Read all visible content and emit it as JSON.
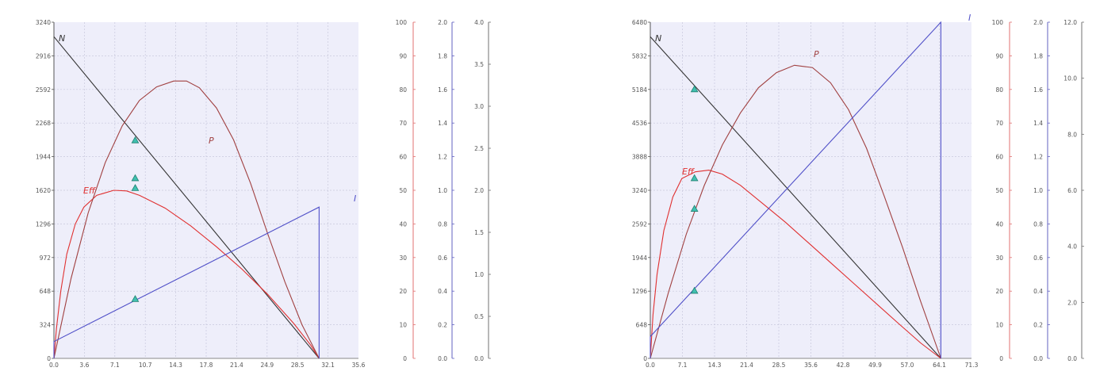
{
  "chart_data": [
    {
      "type": "line",
      "x_ticks": [
        "0.0",
        "3.6",
        "7.1",
        "10.7",
        "14.3",
        "17.8",
        "21.4",
        "24.9",
        "28.5",
        "32.1",
        "35.6"
      ],
      "xlim": [
        0,
        35.6
      ],
      "axes": [
        {
          "id": "speed",
          "ticks": [
            "0",
            "324",
            "648",
            "972",
            "1296",
            "1620",
            "1944",
            "2268",
            "2592",
            "2916",
            "3240"
          ],
          "range": [
            0,
            3240
          ],
          "color": "#555555",
          "title": ""
        },
        {
          "id": "eff",
          "ticks": [
            "0",
            "10",
            "20",
            "30",
            "40",
            "50",
            "60",
            "70",
            "80",
            "90",
            "100"
          ],
          "range": [
            0,
            100
          ],
          "color": "#e07070",
          "title": ""
        },
        {
          "id": "torque",
          "ticks": [
            "0.0",
            "0.2",
            "0.4",
            "0.6",
            "0.8",
            "1.0",
            "1.2",
            "1.4",
            "1.6",
            "1.8",
            "2.0"
          ],
          "range": [
            0,
            2
          ],
          "color": "#6060c0",
          "title": ""
        },
        {
          "id": "power",
          "ticks": [
            "0.0",
            "0.5",
            "1.0",
            "1.5",
            "2.0",
            "2.5",
            "3.0",
            "3.5",
            "4.0"
          ],
          "range": [
            0,
            4
          ],
          "color": "#707070",
          "title": ""
        }
      ],
      "series": [
        {
          "name": "N",
          "axis": "speed",
          "color": "#333333",
          "points": [
            [
              0,
              3100
            ],
            [
              31,
              0
            ]
          ]
        },
        {
          "name": "Eff",
          "axis": "eff",
          "color": "#e03030",
          "points": [
            [
              0,
              0
            ],
            [
              0.3,
              9
            ],
            [
              0.8,
              20
            ],
            [
              1.5,
              31
            ],
            [
              2.5,
              40
            ],
            [
              3.5,
              45
            ],
            [
              5,
              48.5
            ],
            [
              7,
              50
            ],
            [
              8.5,
              49.8
            ],
            [
              10,
              48.5
            ],
            [
              13,
              44.7
            ],
            [
              16,
              39.4
            ],
            [
              19,
              33.2
            ],
            [
              22,
              26.5
            ],
            [
              25,
              19
            ],
            [
              28,
              10.5
            ],
            [
              30,
              4
            ],
            [
              31,
              0
            ]
          ]
        },
        {
          "name": "P",
          "axis": "power",
          "color": "#a04040",
          "points": [
            [
              0,
              0
            ],
            [
              2,
              0.95
            ],
            [
              4,
              1.73
            ],
            [
              6,
              2.33
            ],
            [
              8,
              2.77
            ],
            [
              10,
              3.07
            ],
            [
              12,
              3.23
            ],
            [
              14,
              3.3
            ],
            [
              15.5,
              3.3
            ],
            [
              17,
              3.22
            ],
            [
              19,
              2.98
            ],
            [
              21,
              2.6
            ],
            [
              23,
              2.08
            ],
            [
              25,
              1.48
            ],
            [
              27,
              0.91
            ],
            [
              29,
              0.4
            ],
            [
              31,
              0
            ]
          ]
        },
        {
          "name": "I",
          "axis": "torque",
          "color": "#5050c8",
          "points": [
            [
              0,
              0
            ],
            [
              0,
              0.1
            ],
            [
              31,
              0.9
            ],
            [
              31,
              0
            ]
          ]
        }
      ],
      "markers": [
        {
          "x": 9.5,
          "axis": "speed",
          "value": 2100
        },
        {
          "x": 9.5,
          "axis": "speed",
          "value": 1735
        },
        {
          "x": 9.5,
          "axis": "speed",
          "value": 1640
        },
        {
          "x": 9.5,
          "axis": "speed",
          "value": 570
        }
      ],
      "labels": [
        {
          "text": "N",
          "series": "N",
          "color": "#333333"
        },
        {
          "text": "Eff",
          "series": "Eff",
          "color": "#e03030"
        },
        {
          "text": "P",
          "series": "P",
          "color": "#a04040"
        },
        {
          "text": "I",
          "series": "I",
          "color": "#5050c8"
        }
      ],
      "grid": true
    },
    {
      "type": "line",
      "x_ticks": [
        "0.0",
        "7.1",
        "14.3",
        "21.4",
        "28.5",
        "35.6",
        "42.8",
        "49.9",
        "57.0",
        "64.1",
        "71.3"
      ],
      "xlim": [
        0,
        71.3
      ],
      "axes": [
        {
          "id": "speed",
          "ticks": [
            "0",
            "648",
            "1296",
            "1944",
            "2592",
            "3240",
            "3888",
            "4536",
            "5184",
            "5832",
            "6480"
          ],
          "range": [
            0,
            6480
          ],
          "color": "#555555",
          "title": ""
        },
        {
          "id": "eff",
          "ticks": [
            "0",
            "10",
            "20",
            "30",
            "40",
            "50",
            "60",
            "70",
            "80",
            "90",
            "100"
          ],
          "range": [
            0,
            100
          ],
          "color": "#e07070",
          "title": ""
        },
        {
          "id": "torque",
          "ticks": [
            "0.0",
            "0.2",
            "0.4",
            "0.6",
            "0.8",
            "1.0",
            "1.2",
            "1.4",
            "1.6",
            "1.8",
            "2.0"
          ],
          "range": [
            0,
            2
          ],
          "color": "#6060c0",
          "title": ""
        },
        {
          "id": "power",
          "ticks": [
            "0.0",
            "2.0",
            "4.0",
            "6.0",
            "8.0",
            "10.0",
            "12.0"
          ],
          "range": [
            0,
            12
          ],
          "color": "#707070",
          "title": ""
        }
      ],
      "series": [
        {
          "name": "N",
          "axis": "speed",
          "color": "#333333",
          "points": [
            [
              0,
              6200
            ],
            [
              64.5,
              0
            ]
          ]
        },
        {
          "name": "Eff",
          "axis": "eff",
          "color": "#e03030",
          "points": [
            [
              0,
              0
            ],
            [
              0.6,
              13
            ],
            [
              1.5,
              25
            ],
            [
              3,
              38
            ],
            [
              5,
              48
            ],
            [
              7,
              53.5
            ],
            [
              10,
              55.5
            ],
            [
              13,
              56
            ],
            [
              16,
              54.8
            ],
            [
              20,
              51.5
            ],
            [
              25,
              46
            ],
            [
              30,
              40.5
            ],
            [
              35,
              34.5
            ],
            [
              40,
              28.5
            ],
            [
              45,
              22.5
            ],
            [
              50,
              16.5
            ],
            [
              55,
              10.5
            ],
            [
              60,
              4.6
            ],
            [
              64.5,
              0
            ]
          ]
        },
        {
          "name": "P",
          "axis": "eff",
          "color": "#a04040",
          "points": [
            [
              0,
              0
            ],
            [
              4,
              19.5
            ],
            [
              8,
              37
            ],
            [
              12,
              51.5
            ],
            [
              16,
              63.5
            ],
            [
              20,
              73
            ],
            [
              24,
              80.5
            ],
            [
              28,
              85
            ],
            [
              32,
              87.2
            ],
            [
              36,
              86.5
            ],
            [
              40,
              82
            ],
            [
              44,
              74
            ],
            [
              48,
              62.5
            ],
            [
              52,
              48
            ],
            [
              56,
              33
            ],
            [
              60,
              17
            ],
            [
              64.5,
              0
            ]
          ]
        },
        {
          "name": "I",
          "axis": "torque",
          "color": "#5050c8",
          "points": [
            [
              0,
              0
            ],
            [
              0,
              0.13
            ],
            [
              64.5,
              2.0
            ],
            [
              64.5,
              0
            ]
          ]
        }
      ],
      "markers": [
        {
          "x": 9.8,
          "axis": "speed",
          "value": 5184
        },
        {
          "x": 9.8,
          "axis": "speed",
          "value": 3470
        },
        {
          "x": 9.8,
          "axis": "speed",
          "value": 2880
        },
        {
          "x": 9.8,
          "axis": "speed",
          "value": 1300
        }
      ],
      "labels": [
        {
          "text": "N",
          "series": "N",
          "color": "#333333"
        },
        {
          "text": "Eff",
          "series": "Eff",
          "color": "#e03030"
        },
        {
          "text": "P",
          "series": "P",
          "color": "#a04040"
        },
        {
          "text": "I",
          "series": "I",
          "color": "#5050c8"
        }
      ],
      "grid": true
    }
  ]
}
